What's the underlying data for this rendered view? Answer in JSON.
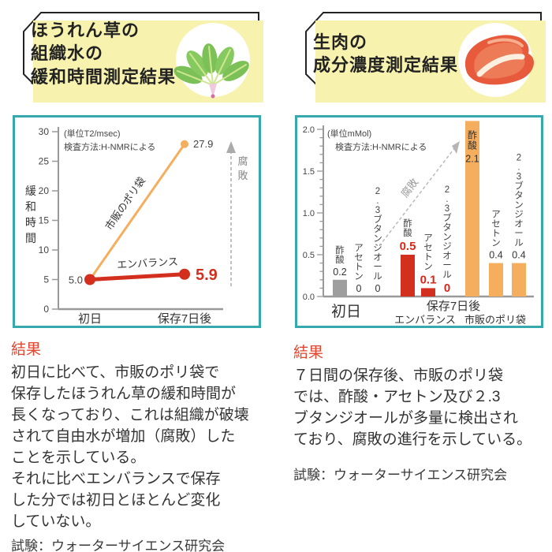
{
  "colors": {
    "teal_border": "#35A9AE",
    "header_bg": "#F7F2AE",
    "outline": "#222222",
    "orange": "#F5AE5D",
    "red": "#D32F1E",
    "gray_bar": "#9E9E9E",
    "arrow_gray": "#ABABAB",
    "result_heading": "#E0462F"
  },
  "left": {
    "header": {
      "title": "ほうれん草の\n組織水の\n緩和時間測定結果",
      "icon": "spinach-icon"
    },
    "result": {
      "heading": "結果",
      "body": "初日に比べて、市販のポリ袋で\n保存したほうれん草の緩和時間が\n長くなっており、これは組織が破壊\nされて自由水が増加（腐敗）した\nことを示している。\nそれに比べエンバランスで保存\nした分では初日とほとんど変化\nしていない。",
      "note": "試験：ウォーターサイエンス研究会"
    }
  },
  "right": {
    "header": {
      "title": "生肉の\n成分濃度測定結果",
      "icon": "meat-icon"
    },
    "result": {
      "heading": "結果",
      "body": "７日間の保存後、市販のポリ袋\nでは、酢酸・アセトン及び２.3\nブタンジオールが多量に検出され\nており、腐敗の進行を示している。",
      "note": "試験：ウォーターサイエンス研究会"
    }
  },
  "chart_data": [
    {
      "type": "line",
      "title": "ほうれん草の組織水の緩和時間測定結果",
      "unit_note": "(単位T2/msec)",
      "method_note": "検査方法:H-NMRによる",
      "ylabel": "緩和時間",
      "ylim": [
        0,
        30
      ],
      "ytick_step": 5,
      "categories": [
        "初日",
        "保存7日後"
      ],
      "start_label": "5.0",
      "series": [
        {
          "name": "市販のポリ袋",
          "values": [
            5.0,
            27.9
          ],
          "end_label": "27.9",
          "color": "#F5AE5D",
          "emphasis": false
        },
        {
          "name": "エンバランス",
          "values": [
            5.0,
            5.9
          ],
          "end_label": "5.9",
          "color": "#D32F1E",
          "emphasis": true
        }
      ],
      "arrow_label": "腐敗",
      "grid": false,
      "legend_position": "on-line"
    },
    {
      "type": "bar",
      "title": "生肉の成分濃度測定結果",
      "unit_note": "(単位mMol)",
      "method_note": "検査方法:H-NMRによる",
      "ylim": [
        0,
        2.0
      ],
      "ytick_step": 0.5,
      "minor_tick_step": 0.1,
      "storage_label": "保存7日後",
      "arrow_label": "腐敗",
      "groups": [
        {
          "label": "初日",
          "bar_color": "#9E9E9E",
          "value_color": "#333333",
          "value_bold": false,
          "bars": [
            {
              "name": "酢酸",
              "value": 0.2,
              "value_label": "0.2"
            },
            {
              "name": "アセトン",
              "value": 0,
              "value_label": "0"
            },
            {
              "name": "2.3ブタンジオール",
              "value": 0,
              "value_label": "0"
            }
          ]
        },
        {
          "label": "エンバランス",
          "bar_color": "#D32F1E",
          "value_color": "#D5281A",
          "value_bold": true,
          "bars": [
            {
              "name": "酢酸",
              "value": 0.5,
              "value_label": "0.5"
            },
            {
              "name": "アセトン",
              "value": 0.1,
              "value_label": "0.1"
            },
            {
              "name": "2.3ブタンジオール",
              "value": 0,
              "value_label": "0"
            }
          ]
        },
        {
          "label": "市販のポリ袋",
          "bar_color": "#F5AE5D",
          "value_color": "#333333",
          "value_bold": false,
          "bars": [
            {
              "name": "酢酸",
              "value": 2.1,
              "value_label": "2.1"
            },
            {
              "name": "アセトン",
              "value": 0.4,
              "value_label": "0.4"
            },
            {
              "name": "2.3ブタンジオール",
              "value": 0.4,
              "value_label": "0.4"
            }
          ]
        }
      ],
      "grid": false
    }
  ]
}
